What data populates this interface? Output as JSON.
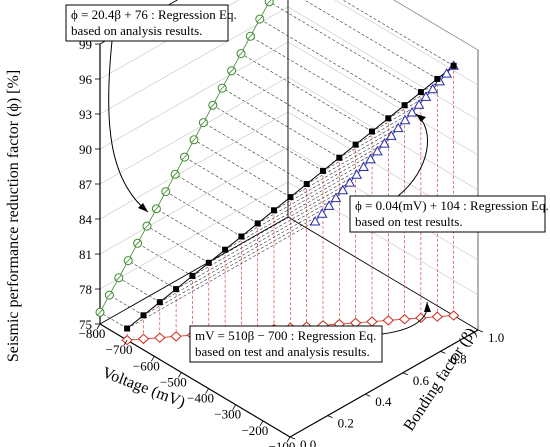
{
  "chart_data": {
    "type": "scatter",
    "zlabel": "Seismic performance reduction factor (ϕ) [%]",
    "xlabel": "Voltage (mV)",
    "ylabel": "Bonding factor (β)",
    "xlim": [
      -800,
      -100
    ],
    "ylim": [
      0.0,
      1.0
    ],
    "zlim": [
      75,
      99
    ],
    "x_ticks": [
      "−800",
      "−700",
      "−600",
      "−500",
      "−400",
      "−300",
      "−200",
      "−100"
    ],
    "y_ticks": [
      "0.0",
      "0.2",
      "0.4",
      "0.6",
      "0.8",
      "1.0"
    ],
    "z_ticks": [
      "75",
      "78",
      "81",
      "84",
      "87",
      "90",
      "93",
      "96",
      "99"
    ],
    "series": [
      {
        "marker": "filled-square",
        "color": "#000000",
        "description_key": "3D curve",
        "beta": [
          0.0,
          0.05,
          0.1,
          0.15,
          0.2,
          0.25,
          0.3,
          0.35,
          0.4,
          0.45,
          0.5,
          0.55,
          0.6,
          0.65,
          0.7,
          0.75,
          0.8,
          0.85,
          0.9,
          0.95,
          1.0
        ],
        "mV": [
          -700,
          -674.5,
          -649,
          -623.5,
          -598,
          -572.5,
          -547,
          -521.5,
          -496,
          -470.5,
          -445,
          -419.5,
          -394,
          -368.5,
          -343,
          -317.5,
          -292,
          -266.5,
          -241,
          -215.5,
          -190
        ],
        "phi": [
          76,
          77.02,
          78.04,
          79.06,
          80.08,
          81.1,
          82.12,
          83.14,
          84.16,
          85.18,
          86.2,
          87.22,
          88.24,
          89.26,
          90.28,
          91.3,
          92.32,
          93.34,
          94.36,
          95.38,
          96.4
        ]
      },
      {
        "marker": "open-circle",
        "color": "#3a8a2a",
        "projection": "ϕ–β plane",
        "beta": [
          0.0,
          0.05,
          0.1,
          0.15,
          0.2,
          0.25,
          0.3,
          0.35,
          0.4,
          0.45,
          0.5,
          0.55,
          0.6,
          0.65,
          0.7,
          0.75,
          0.8,
          0.85,
          0.9,
          0.95,
          1.0
        ],
        "phi": [
          76,
          77.02,
          78.04,
          79.06,
          80.08,
          81.1,
          82.12,
          83.14,
          84.16,
          85.18,
          86.2,
          87.22,
          88.24,
          89.26,
          90.28,
          91.3,
          92.32,
          93.34,
          94.36,
          95.38,
          96.4
        ]
      },
      {
        "marker": "open-triangle",
        "color": "#2a2aa8",
        "projection": "ϕ–mV plane",
        "mV": [
          -700,
          -674.5,
          -649,
          -623.5,
          -598,
          -572.5,
          -547,
          -521.5,
          -496,
          -470.5,
          -445,
          -419.5,
          -394,
          -368.5,
          -343,
          -317.5,
          -292,
          -266.5,
          -241,
          -215.5,
          -190
        ],
        "phi": [
          76,
          77.02,
          78.04,
          79.06,
          80.08,
          81.1,
          82.12,
          83.14,
          84.16,
          85.18,
          86.2,
          87.22,
          88.24,
          89.26,
          90.28,
          91.3,
          92.32,
          93.34,
          94.36,
          95.38,
          96.4
        ]
      },
      {
        "marker": "open-diamond",
        "color": "#cc2a1e",
        "projection": "mV–β plane",
        "beta": [
          0.0,
          0.05,
          0.1,
          0.15,
          0.2,
          0.25,
          0.3,
          0.35,
          0.4,
          0.45,
          0.5,
          0.55,
          0.6,
          0.65,
          0.7,
          0.75,
          0.8,
          0.85,
          0.9,
          0.95,
          1.0
        ],
        "mV": [
          -700,
          -674.5,
          -649,
          -623.5,
          -598,
          -572.5,
          -547,
          -521.5,
          -496,
          -470.5,
          -445,
          -419.5,
          -394,
          -368.5,
          -343,
          -317.5,
          -292,
          -266.5,
          -241,
          -215.5,
          -190
        ]
      }
    ],
    "annotations": [
      {
        "line1": "ϕ = 20.4β + 76 : Regression Eq.",
        "line2": "based on analysis results."
      },
      {
        "line1": "ϕ = 0.04(mV) + 104 : Regression Eq.",
        "line2": "based on test results."
      },
      {
        "line1": "mV = 510β − 700 : Regression Eq.",
        "line2": "based on test and analysis results."
      }
    ],
    "grid": true
  }
}
